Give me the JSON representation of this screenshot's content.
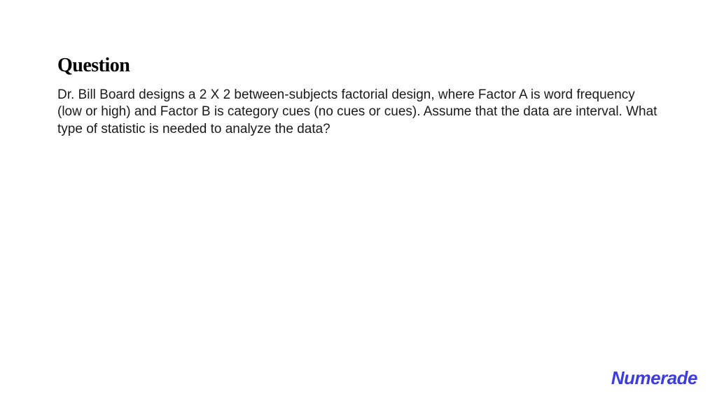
{
  "heading": "Question",
  "body": "Dr. Bill Board designs a 2 X 2 between-subjects factorial design, where Factor A is word frequency (low or high) and Factor B is category cues (no cues or cues). Assume that the data are interval. What type of statistic is needed to analyze the data?",
  "logo": "Numerade",
  "colors": {
    "background": "#ffffff",
    "heading_text": "#000000",
    "body_text": "#1a1a1a",
    "logo": "#3d3ddb"
  },
  "typography": {
    "heading_fontsize": 28,
    "heading_weight": 700,
    "heading_family": "serif",
    "body_fontsize": 19,
    "body_weight": 400,
    "body_lineheight": 1.28,
    "logo_fontsize": 26,
    "logo_weight": 700
  }
}
